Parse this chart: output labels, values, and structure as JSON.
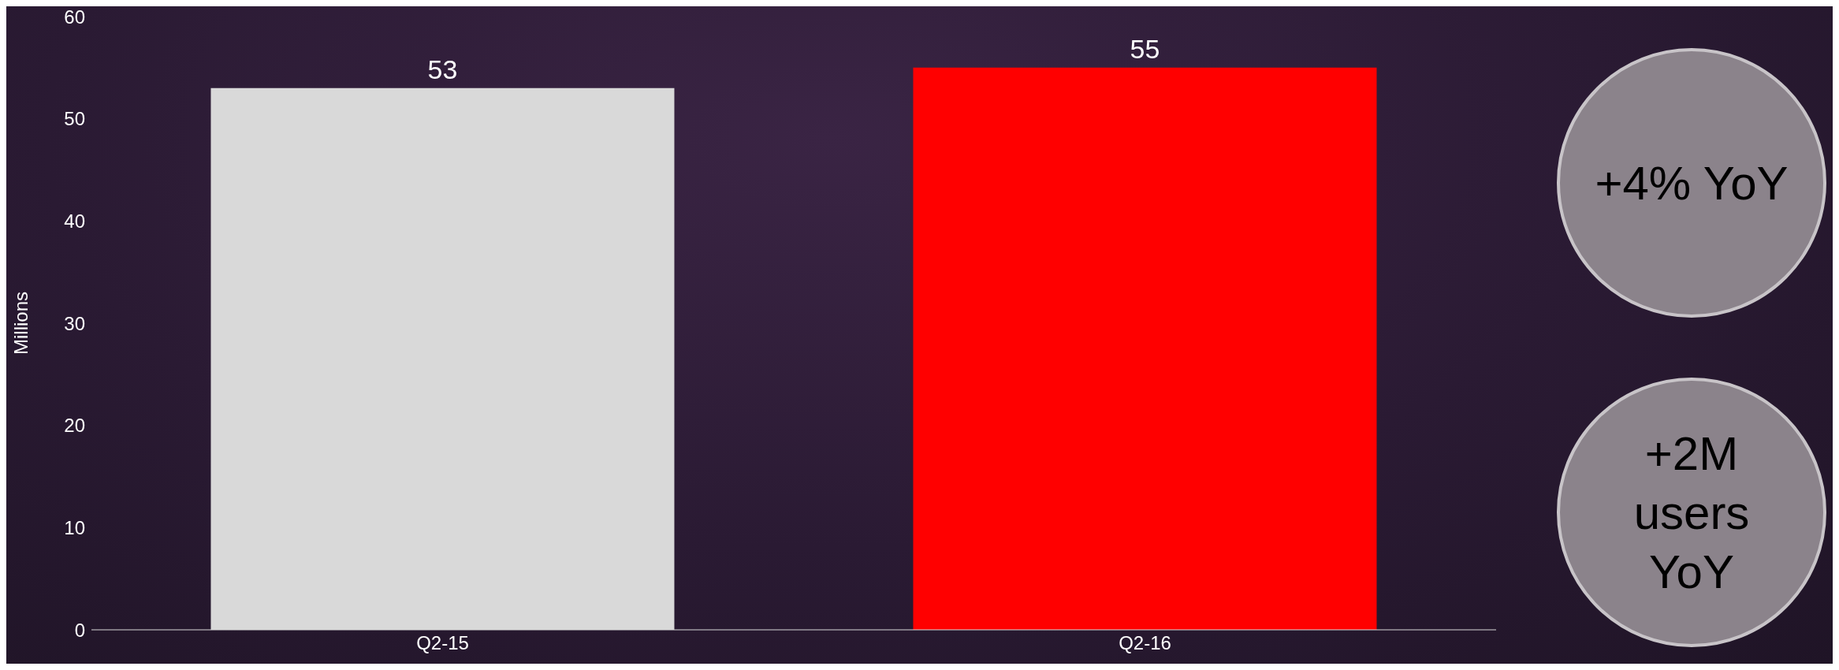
{
  "chart_data": {
    "type": "bar",
    "ylabel": "Millions",
    "categories": [
      "Q2-15",
      "Q2-16"
    ],
    "values": [
      53,
      55
    ],
    "colors": [
      "#d9d9d9",
      "#ff0000"
    ],
    "ylim": [
      0,
      60
    ],
    "yticks": [
      0,
      10,
      20,
      30,
      40,
      50,
      60
    ],
    "grid": false,
    "data_labels": true,
    "legend": false,
    "annotations": [
      "+4% YoY",
      "+2M users YoY"
    ]
  }
}
